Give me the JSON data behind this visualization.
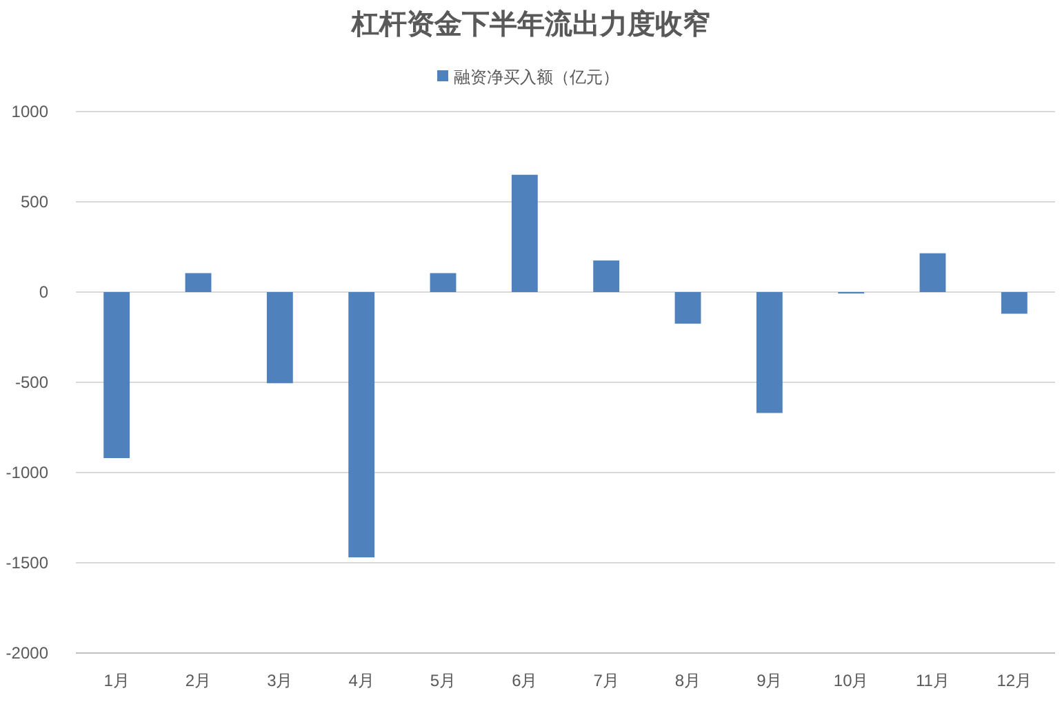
{
  "chart_data": {
    "type": "bar",
    "title": "杠杆资金下半年流出力度收窄",
    "categories": [
      "1月",
      "2月",
      "3月",
      "4月",
      "5月",
      "6月",
      "7月",
      "8月",
      "9月",
      "10月",
      "11月",
      "12月"
    ],
    "series": [
      {
        "name": "融资净买入额（亿元）",
        "color": "#4f81bd",
        "values": [
          -920,
          105,
          -505,
          -1470,
          105,
          650,
          175,
          -175,
          -670,
          -8,
          215,
          -120
        ]
      }
    ],
    "ylim": [
      -2000,
      1000
    ],
    "yticks": [
      -2000,
      -1500,
      -1000,
      -500,
      0,
      500,
      1000
    ],
    "grid": "y",
    "legend": "top"
  }
}
